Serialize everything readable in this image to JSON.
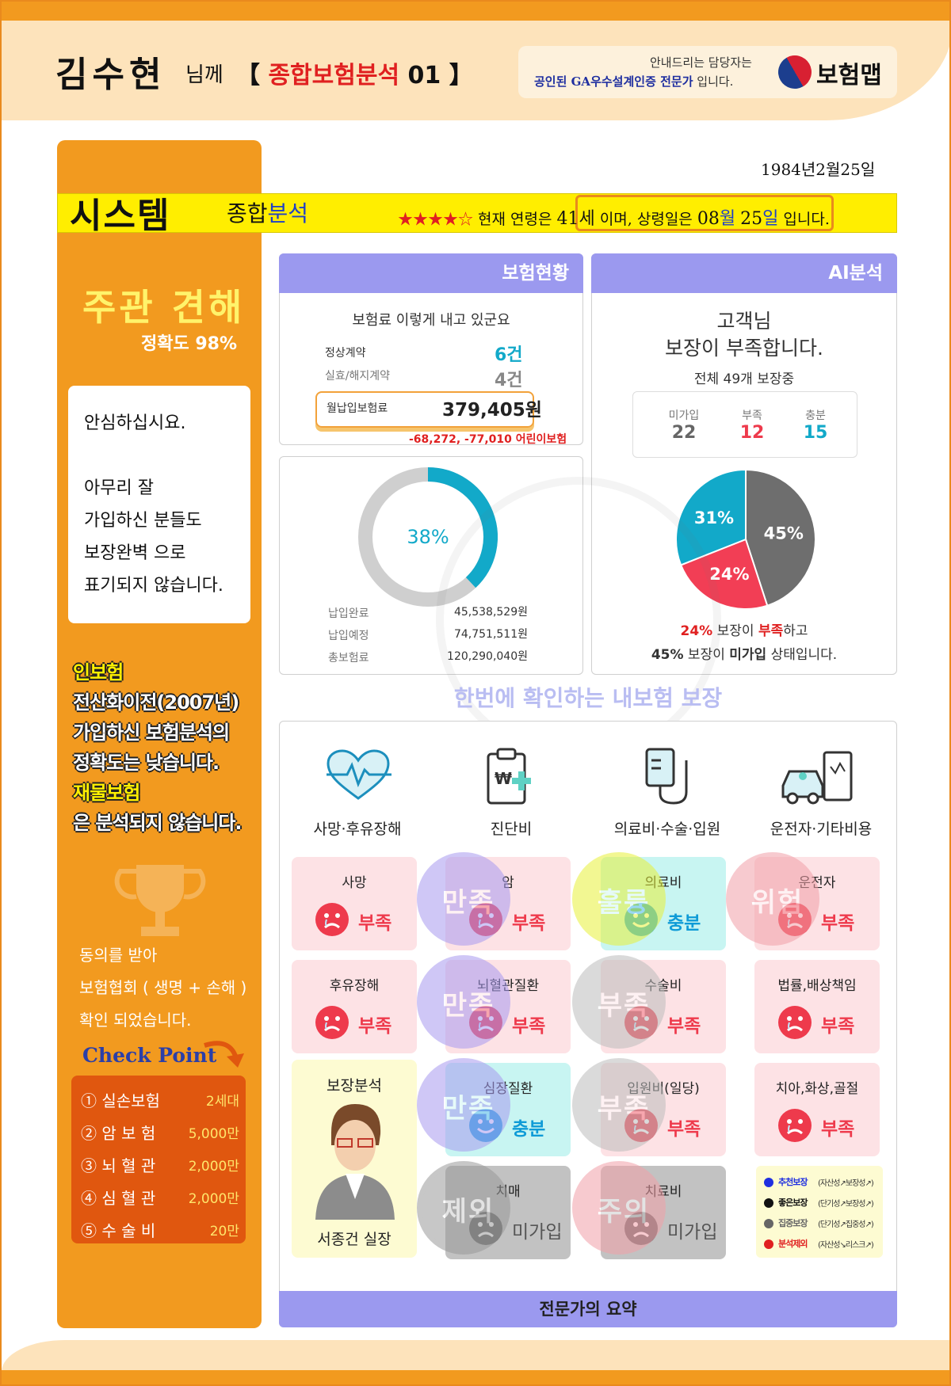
{
  "header": {
    "name": "김수현",
    "suffix": "님께",
    "title_open": "【 ",
    "title_red": "종합보험분석",
    "title_num": " 01 】",
    "brand_line1": "안내드리는 담당자는",
    "brand_line2_blue": "공인된 GA우수설계인증 전문가",
    "brand_line2_rest": " 입니다.",
    "brand_name": "보험맵"
  },
  "birth_date": "1984년2월25일",
  "system": {
    "title": "시스템",
    "sub1": "종합",
    "sub2": "분석",
    "stars": "★★★★☆",
    "text_pre": " 현재 연령은 ",
    "age": "41세",
    "text_mid": " 이며, 상령일은 ",
    "ins_month": "08",
    "month_unit": "월",
    "ins_day": "25",
    "day_unit": "일",
    "text_end": " 입니다.",
    "rating": 4,
    "rating_max": 5
  },
  "opinion": {
    "title": "주관 견해",
    "accuracy": "정확도 98%",
    "lines": [
      "안심하십시요.",
      "",
      "아무리 잘",
      "가입하신 분들도",
      "보장완벽 으로",
      "표기되지 않습니다."
    ]
  },
  "notice": {
    "l1": "인보험",
    "l2": "전산화이전(2007년)",
    "l3": "가입하신 보험분석의",
    "l4": "정확도는 낮습니다.",
    "l5": "재물보험",
    "l6": "은 분석되지 않습니다."
  },
  "agreement": [
    "동의를 받아",
    "보험협회 ( 생명 + 손해 )",
    "확인 되었습니다."
  ],
  "check_point": {
    "title": "Check Point",
    "items": [
      {
        "label": "① 실손보험",
        "value": "2세대"
      },
      {
        "label": "② 암 보 험",
        "value": "5,000만"
      },
      {
        "label": "③ 뇌 혈 관",
        "value": "2,000만"
      },
      {
        "label": "④ 심 혈 관",
        "value": "2,000만"
      },
      {
        "label": "⑤ 수 술 비",
        "value": "20만"
      }
    ]
  },
  "insurance_status": {
    "head": "보험현황",
    "subtitle": "보험료 이렇게 내고 있군요",
    "active_label": "정상계약",
    "active_value": "6건",
    "lapsed_label": "실효/해지계약",
    "lapsed_value": "4건",
    "monthly_label": "월납입보험료",
    "monthly_value": "379,405원",
    "note": "-68,272, -77,010 어린이보험"
  },
  "premium_donut": {
    "percent_label": "38%",
    "percent": 38,
    "colors": {
      "paid": "#12a9c9",
      "rest": "#cfcfcf"
    },
    "rows": [
      {
        "label": "납입완료",
        "value": "45,538,529원"
      },
      {
        "label": "납입예정",
        "value": "74,751,511원"
      },
      {
        "label": "총보험료",
        "value": "120,290,040원"
      }
    ]
  },
  "ai_analysis": {
    "head": "AI분석",
    "line1": "고객님",
    "line2": "보장이 부족합니다.",
    "line3": "전체 49개 보장중",
    "stats": [
      {
        "label": "미가입",
        "value": "22",
        "color": "#666666"
      },
      {
        "label": "부족",
        "value": "12",
        "color": "#ee3a4c"
      },
      {
        "label": "충분",
        "value": "15",
        "color": "#12a9c9"
      }
    ],
    "pie": [
      {
        "label": "45%",
        "value": 45,
        "color": "#6e6e6e"
      },
      {
        "label": "24%",
        "value": 24,
        "color": "#f23e55"
      },
      {
        "label": "31%",
        "value": 31,
        "color": "#12a9c9"
      }
    ],
    "summary1_pct": "24%",
    "summary1_mid": " 보장이 ",
    "summary1_hl": "부족",
    "summary1_end": "하고",
    "summary2_pct": "45%",
    "summary2_mid": " 보장이 ",
    "summary2_hl": "미가입",
    "summary2_end": " 상태입니다."
  },
  "coverage_title": "한번에 확인하는 내보험 보장",
  "categories": [
    {
      "label": "사망·후유장해",
      "icon": "heartbeat-icon"
    },
    {
      "label": "진단비",
      "icon": "diagnosis-icon"
    },
    {
      "label": "의료비·수술·입원",
      "icon": "iv-drip-icon"
    },
    {
      "label": "운전자·기타비용",
      "icon": "car-icon"
    }
  ],
  "coverage": [
    {
      "title": "사망",
      "status": "부족",
      "kind": "bad"
    },
    {
      "title": "암",
      "status": "부족",
      "kind": "bad",
      "stamp": "만족",
      "stamp_color": "#a89bf0"
    },
    {
      "title": "의료비",
      "status": "충분",
      "kind": "good",
      "stamp": "훌륭",
      "stamp_color": "#e8f13a"
    },
    {
      "title": "운전자",
      "status": "부족",
      "kind": "bad",
      "stamp": "위험",
      "stamp_color": "#f2a0a8"
    },
    {
      "title": "후유장해",
      "status": "부족",
      "kind": "bad"
    },
    {
      "title": "뇌혈관질환",
      "status": "부족",
      "kind": "bad",
      "stamp": "만족",
      "stamp_color": "#a89bf0"
    },
    {
      "title": "수술비",
      "status": "부족",
      "kind": "bad",
      "stamp": "부족",
      "stamp_color": "#bdbdbd"
    },
    {
      "title": "법률,배상책임",
      "status": "부족",
      "kind": "bad"
    },
    {
      "title": "심장질환",
      "status": "충분",
      "kind": "good",
      "stamp": "만족",
      "stamp_color": "#a89bf0"
    },
    {
      "title": "입원비(일당)",
      "status": "부족",
      "kind": "bad",
      "stamp": "부족",
      "stamp_color": "#bdbdbd"
    },
    {
      "title": "치아,화상,골절",
      "status": "부족",
      "kind": "bad"
    },
    {
      "title": "치매",
      "status": "미가입",
      "kind": "none",
      "stamp": "제외",
      "stamp_color": "#9a9a9a"
    },
    {
      "title": "치료비",
      "status": "미가입",
      "kind": "none",
      "stamp": "주의",
      "stamp_color": "#f2a0a8"
    }
  ],
  "consultant": {
    "title": "보장분석",
    "name": "서종건 실장"
  },
  "legend": [
    {
      "label": "추천보장",
      "note": "(자산성↗보장성↗)",
      "color": "#1f2fe0"
    },
    {
      "label": "좋은보장",
      "note": "(단기성↗보장성↗)",
      "color": "#111111"
    },
    {
      "label": "집중보장",
      "note": "(단기성↗집중성↗)",
      "color": "#666666"
    },
    {
      "label": "분석제외",
      "note": "(자산성↘리스크↗)",
      "color": "#e02020"
    }
  ],
  "footer_summary": "전문가의 요약"
}
